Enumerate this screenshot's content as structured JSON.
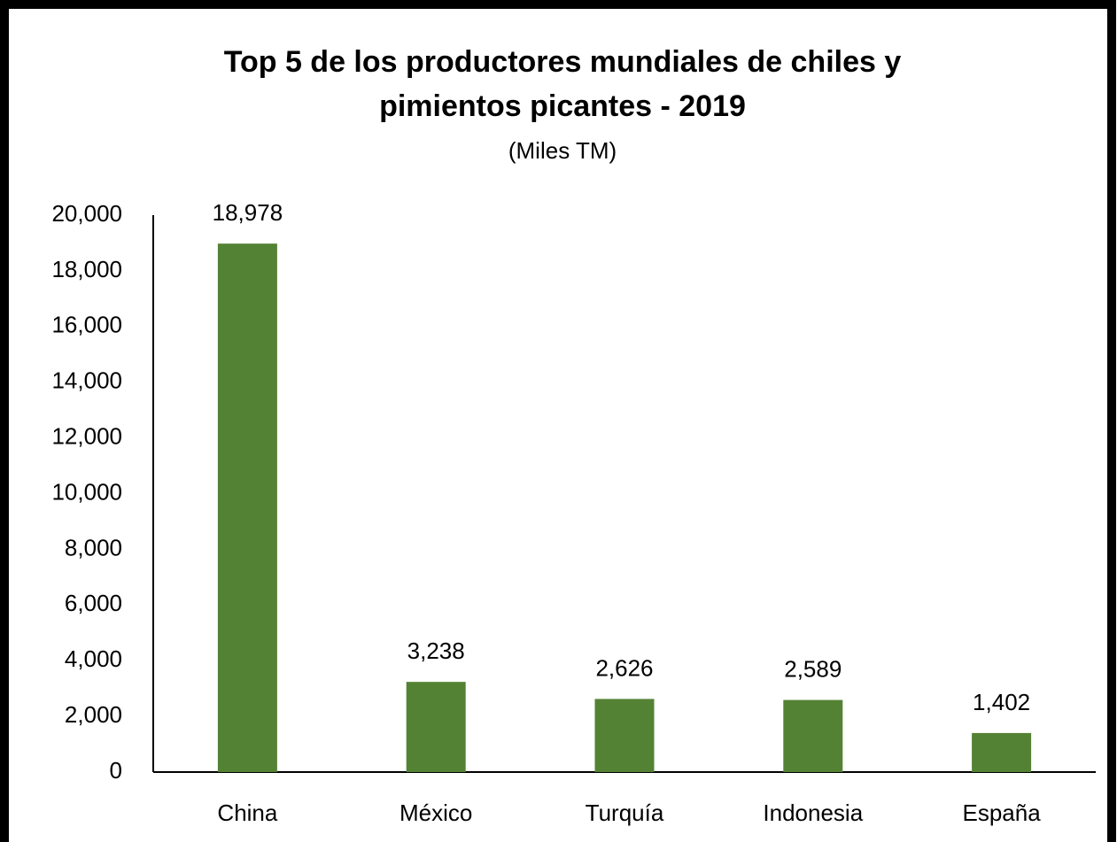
{
  "chart_data": {
    "type": "bar",
    "title": [
      "Top 5 de los productores mundiales de chiles y",
      "pimientos picantes - 2019"
    ],
    "subtitle": "(Miles TM)",
    "categories": [
      "China",
      "México",
      "Turquía",
      "Indonesia",
      "España"
    ],
    "values": [
      18978,
      3238,
      2626,
      2589,
      1402
    ],
    "value_labels": [
      "18,978",
      "3,238",
      "2,626",
      "2,589",
      "1,402"
    ],
    "color": "#548235",
    "ylim": [
      0,
      20000
    ],
    "yticks": [
      0,
      {
        "value": 2000,
        "label": "2,000"
      },
      {
        "value": 4000,
        "label": "4,000"
      },
      {
        "value": 6000,
        "label": "6,000"
      },
      {
        "value": 8000,
        "label": "8,000"
      },
      {
        "value": 10000,
        "label": "10,000"
      },
      {
        "value": 12000,
        "label": "12,000"
      },
      {
        "value": 14000,
        "label": "14,000"
      },
      {
        "value": 16000,
        "label": "16,000"
      },
      {
        "value": 18000,
        "label": "18,000"
      },
      {
        "value": 20000,
        "label": "20,000"
      }
    ],
    "grid": false
  }
}
